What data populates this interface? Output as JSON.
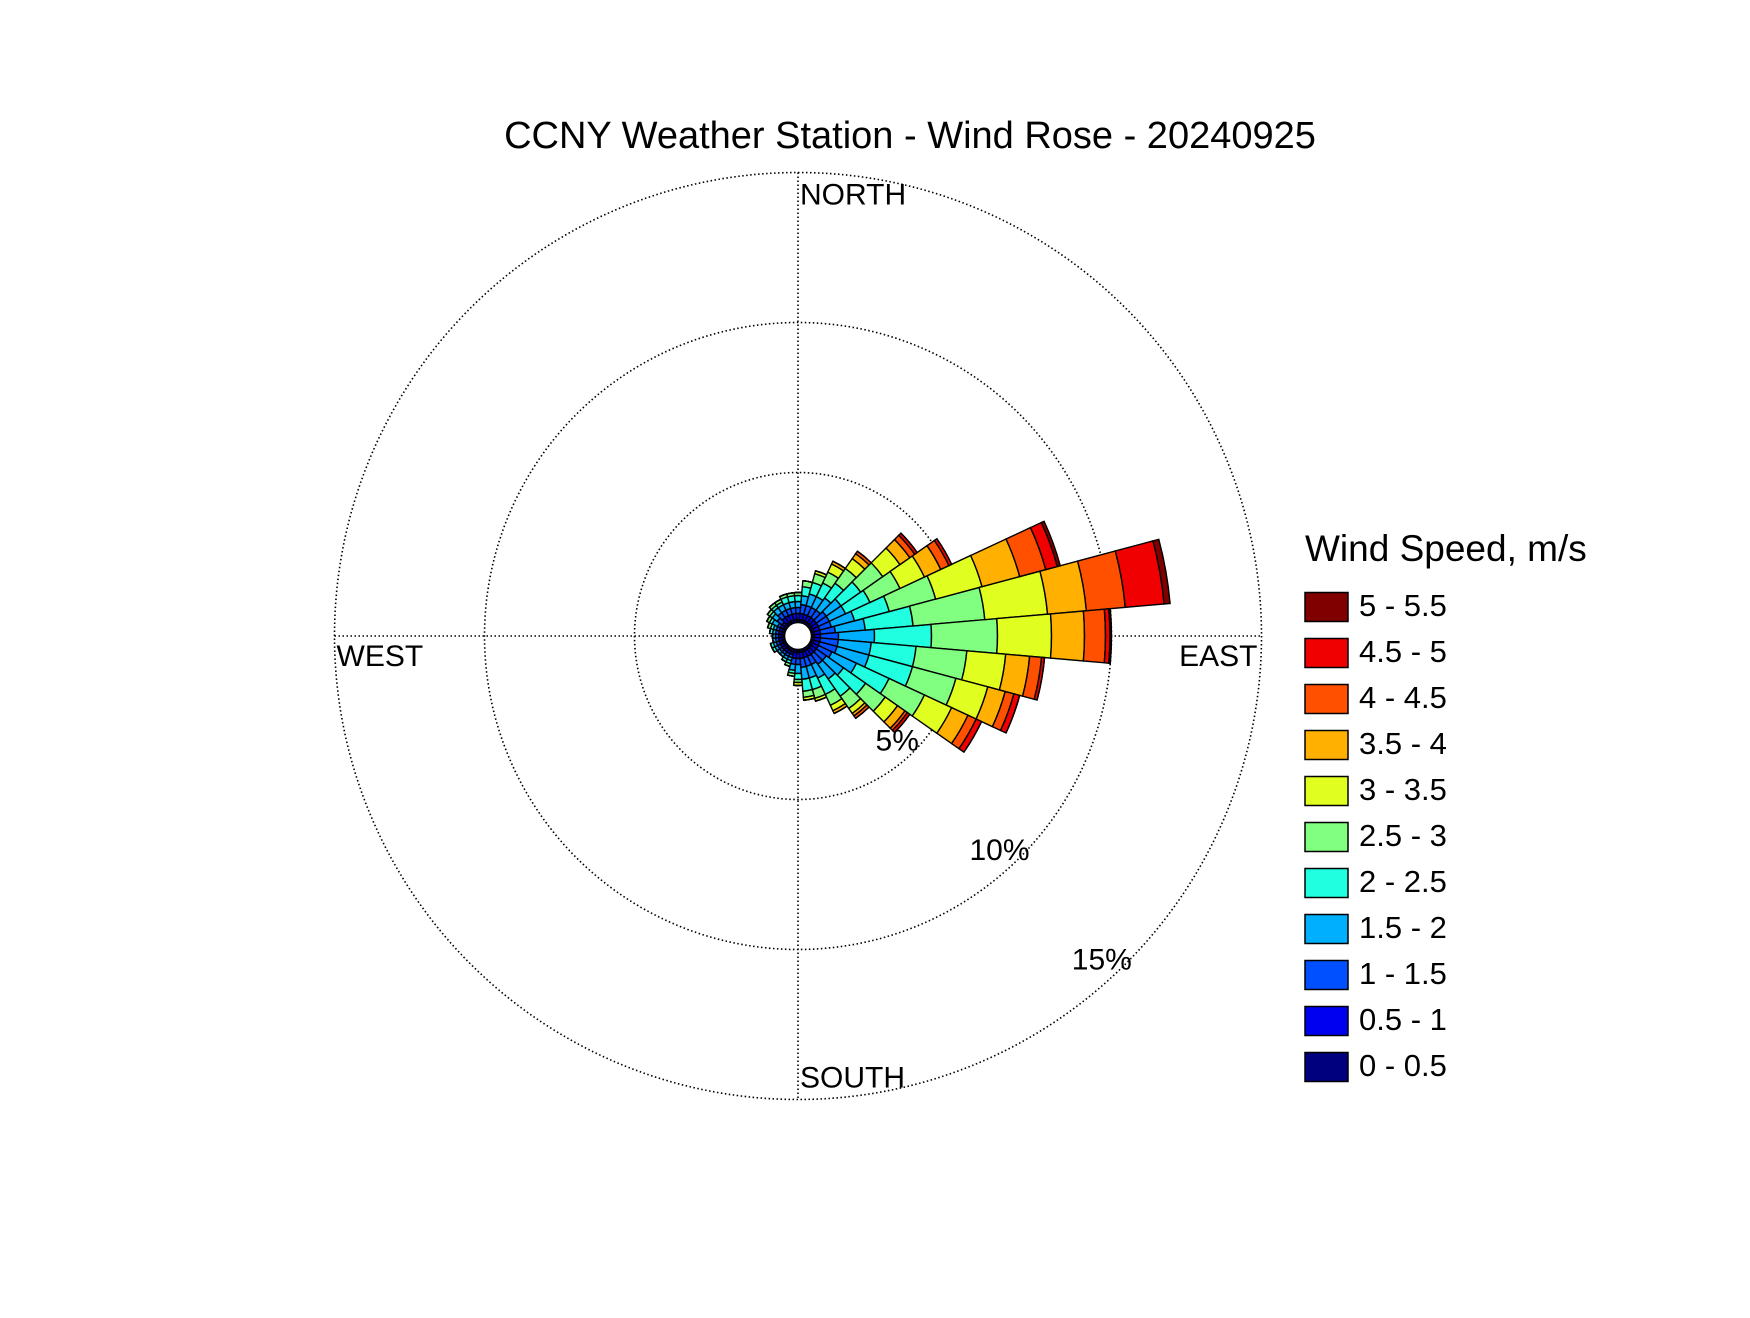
{
  "chart_data": {
    "type": "windrose",
    "title": "CCNY Weather Station - Wind Rose - 20240925",
    "legend_title": "Wind Speed, m/s",
    "direction_labels": [
      "NORTH",
      "EAST",
      "SOUTH",
      "WEST"
    ],
    "directions": [
      0,
      10,
      20,
      30,
      40,
      50,
      60,
      70,
      80,
      90,
      100,
      110,
      120,
      130,
      140,
      150,
      160,
      170,
      180,
      190,
      200,
      210,
      220,
      230,
      240,
      250,
      260,
      270,
      280,
      290,
      300,
      310,
      320,
      330,
      340,
      350
    ],
    "rlim": [
      0,
      15
    ],
    "rticks": [
      {
        "value": 5,
        "label": "5%"
      },
      {
        "value": 10,
        "label": "10%"
      },
      {
        "value": 15,
        "label": "15%"
      }
    ],
    "grid": true,
    "series": [
      {
        "name": "0 - 0.5",
        "color": "#00007f",
        "values": [
          0.1,
          0.1,
          0.1,
          0.1,
          0.1,
          0.1,
          0.1,
          0.1,
          0.1,
          0.1,
          0.1,
          0.1,
          0.1,
          0.1,
          0.1,
          0.1,
          0.1,
          0.1,
          0.1,
          0.1,
          0.1,
          0.1,
          0.1,
          0.1,
          0.1,
          0.1,
          0.1,
          0.1,
          0.1,
          0.1,
          0.1,
          0.1,
          0.1,
          0.1,
          0.1,
          0.1
        ]
      },
      {
        "name": "0.5 - 1",
        "color": "#0000f0",
        "values": [
          0.2,
          0.2,
          0.2,
          0.2,
          0.2,
          0.2,
          0.2,
          0.2,
          0.2,
          0.2,
          0.2,
          0.2,
          0.2,
          0.2,
          0.2,
          0.2,
          0.2,
          0.2,
          0.2,
          0.2,
          0.1,
          0.1,
          0.1,
          0.1,
          0.1,
          0.1,
          0.1,
          0.1,
          0.1,
          0.1,
          0.1,
          0.1,
          0.2,
          0.2,
          0.2,
          0.2
        ]
      },
      {
        "name": "1 - 1.5",
        "color": "#0050ff",
        "values": [
          0.2,
          0.3,
          0.3,
          0.3,
          0.3,
          0.4,
          0.4,
          0.4,
          0.5,
          0.6,
          0.6,
          0.6,
          0.5,
          0.4,
          0.4,
          0.3,
          0.3,
          0.3,
          0.2,
          0.2,
          0.1,
          0.1,
          0.1,
          0.1,
          0.1,
          0.1,
          0.1,
          0.1,
          0.1,
          0.1,
          0.1,
          0.2,
          0.2,
          0.2,
          0.2,
          0.2
        ]
      },
      {
        "name": "1.5 - 2",
        "color": "#00b0ff",
        "values": [
          0.2,
          0.3,
          0.4,
          0.4,
          0.5,
          0.6,
          0.6,
          0.8,
          1.0,
          1.2,
          1.1,
          1.1,
          0.9,
          0.7,
          0.6,
          0.5,
          0.4,
          0.4,
          0.3,
          0.2,
          0.1,
          0.1,
          0.1,
          0.1,
          0.1,
          0.1,
          0.1,
          0.1,
          0.1,
          0.1,
          0.2,
          0.2,
          0.2,
          0.2,
          0.2,
          0.2
        ]
      },
      {
        "name": "2 - 2.5",
        "color": "#20ffe0",
        "values": [
          0.2,
          0.3,
          0.4,
          0.5,
          0.6,
          0.8,
          0.9,
          1.2,
          1.6,
          1.9,
          1.5,
          1.5,
          1.2,
          0.9,
          0.7,
          0.6,
          0.4,
          0.4,
          0.2,
          0.1,
          0.1,
          0.1,
          0,
          0,
          0.1,
          0.1,
          0,
          0,
          0.1,
          0.1,
          0.1,
          0.1,
          0.1,
          0.1,
          0.2,
          0.2
        ]
      },
      {
        "name": "2.5 - 3",
        "color": "#80ff80",
        "values": [
          0.1,
          0.2,
          0.3,
          0.4,
          0.6,
          0.9,
          1.1,
          1.6,
          2.4,
          2.2,
          1.7,
          1.5,
          1.3,
          0.8,
          0.5,
          0.4,
          0.3,
          0.2,
          0.1,
          0.1,
          0.1,
          0,
          0,
          0,
          0,
          0,
          0,
          0,
          0,
          0.1,
          0.1,
          0.1,
          0.1,
          0.1,
          0.1,
          0.1
        ]
      },
      {
        "name": "3 - 3.5",
        "color": "#e0ff20",
        "values": [
          0,
          0,
          0.1,
          0.3,
          0.4,
          0.7,
          0.9,
          1.6,
          2.1,
          1.8,
          1.3,
          1.1,
          1.0,
          0.5,
          0.2,
          0.2,
          0.1,
          0.1,
          0.1,
          0,
          0,
          0,
          0,
          0,
          0,
          0,
          0,
          0,
          0,
          0,
          0,
          0,
          0,
          0,
          0,
          0
        ]
      },
      {
        "name": "3.5 - 4",
        "color": "#ffb000",
        "values": [
          0,
          0,
          0,
          0.1,
          0.2,
          0.4,
          0.6,
          1.3,
          1.3,
          1.1,
          0.8,
          0.6,
          0.6,
          0.3,
          0.1,
          0.1,
          0,
          0,
          0,
          0,
          0,
          0,
          0,
          0,
          0,
          0,
          0,
          0,
          0,
          0,
          0,
          0,
          0,
          0,
          0,
          0
        ]
      },
      {
        "name": "4 - 4.5",
        "color": "#ff5000",
        "values": [
          0,
          0,
          0,
          0,
          0.1,
          0.2,
          0.3,
          0.9,
          1.3,
          0.7,
          0.4,
          0.3,
          0.3,
          0.1,
          0.1,
          0,
          0,
          0,
          0,
          0,
          0,
          0,
          0,
          0,
          0,
          0,
          0,
          0,
          0,
          0,
          0,
          0,
          0,
          0,
          0,
          0
        ]
      },
      {
        "name": "4.5 - 5",
        "color": "#f00000",
        "values": [
          0,
          0,
          0,
          0,
          0,
          0.1,
          0.1,
          0.4,
          1.3,
          0.15,
          0.1,
          0.2,
          0.2,
          0.1,
          0,
          0,
          0,
          0,
          0,
          0,
          0,
          0,
          0,
          0,
          0,
          0,
          0,
          0,
          0,
          0,
          0,
          0,
          0,
          0,
          0,
          0
        ]
      },
      {
        "name": "5 - 5.5",
        "color": "#800000",
        "values": [
          0,
          0,
          0,
          0,
          0,
          0,
          0,
          0.1,
          0.2,
          0.05,
          0,
          0,
          0,
          0,
          0,
          0,
          0,
          0,
          0,
          0,
          0,
          0,
          0,
          0,
          0,
          0,
          0,
          0,
          0,
          0,
          0,
          0,
          0,
          0,
          0,
          0
        ]
      }
    ]
  }
}
